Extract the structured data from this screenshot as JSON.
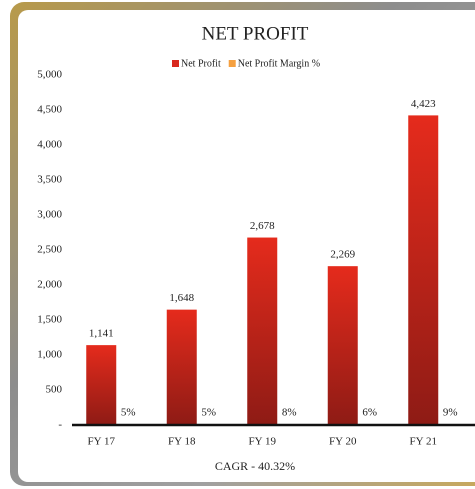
{
  "chart_data": {
    "type": "bar",
    "title": "NET PROFIT",
    "categories": [
      "FY 17",
      "FY 18",
      "FY 19",
      "FY 20",
      "FY 21"
    ],
    "series": [
      {
        "name": "Net Profit",
        "color": "#d8281e",
        "values": [
          1141,
          1648,
          2678,
          2269,
          4423
        ],
        "value_labels": [
          "1,141",
          "1,648",
          "2,678",
          "2,269",
          "4,423"
        ]
      },
      {
        "name": "Net Profit Margin %",
        "color": "#f5a040",
        "values": [
          5,
          5,
          8,
          6,
          9
        ],
        "value_labels": [
          "5%",
          "5%",
          "8%",
          "6%",
          "9%"
        ]
      }
    ],
    "ylim": [
      0,
      5000
    ],
    "yticks": [
      {
        "value": 0,
        "label": "-"
      },
      500,
      {
        "value": 1000,
        "label": "1,000"
      },
      {
        "value": 1500,
        "label": "1,500"
      },
      {
        "value": 2000,
        "label": "2,000"
      },
      {
        "value": 2500,
        "label": "2,500"
      },
      {
        "value": 3000,
        "label": "3,000"
      },
      {
        "value": 3500,
        "label": "3,500"
      },
      {
        "value": 4000,
        "label": "4,000"
      },
      {
        "value": 4500,
        "label": "4,500"
      },
      {
        "value": 5000,
        "label": "5,000"
      }
    ],
    "annotation": "CAGR - 40.32%",
    "legend": "top",
    "grid": false
  }
}
